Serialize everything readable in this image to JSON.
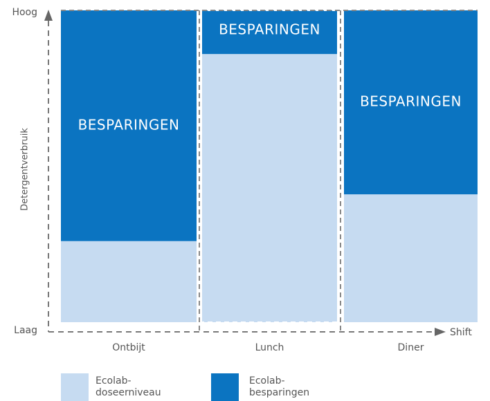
{
  "chart_data": {
    "type": "stacked-bar",
    "y_label": "Detergentverbruik",
    "x_label": "Shift",
    "categories": [
      "Ontbijt",
      "Lunch",
      "Diner"
    ],
    "series": [
      {
        "name": "Ecolab-\ndoseerniveau",
        "color": "#c6dbf1",
        "values": [
          26,
          86,
          41
        ]
      },
      {
        "name": "Ecolab-\nbesparingen",
        "color": "#0b74c1",
        "values": [
          74,
          14,
          59
        ],
        "segment_label": "BESPARINGEN"
      }
    ],
    "ylim": [
      0,
      100
    ],
    "yticks": [
      {
        "value": 0,
        "label": "Laag"
      },
      {
        "value": 100,
        "label": "Hoog"
      }
    ]
  }
}
